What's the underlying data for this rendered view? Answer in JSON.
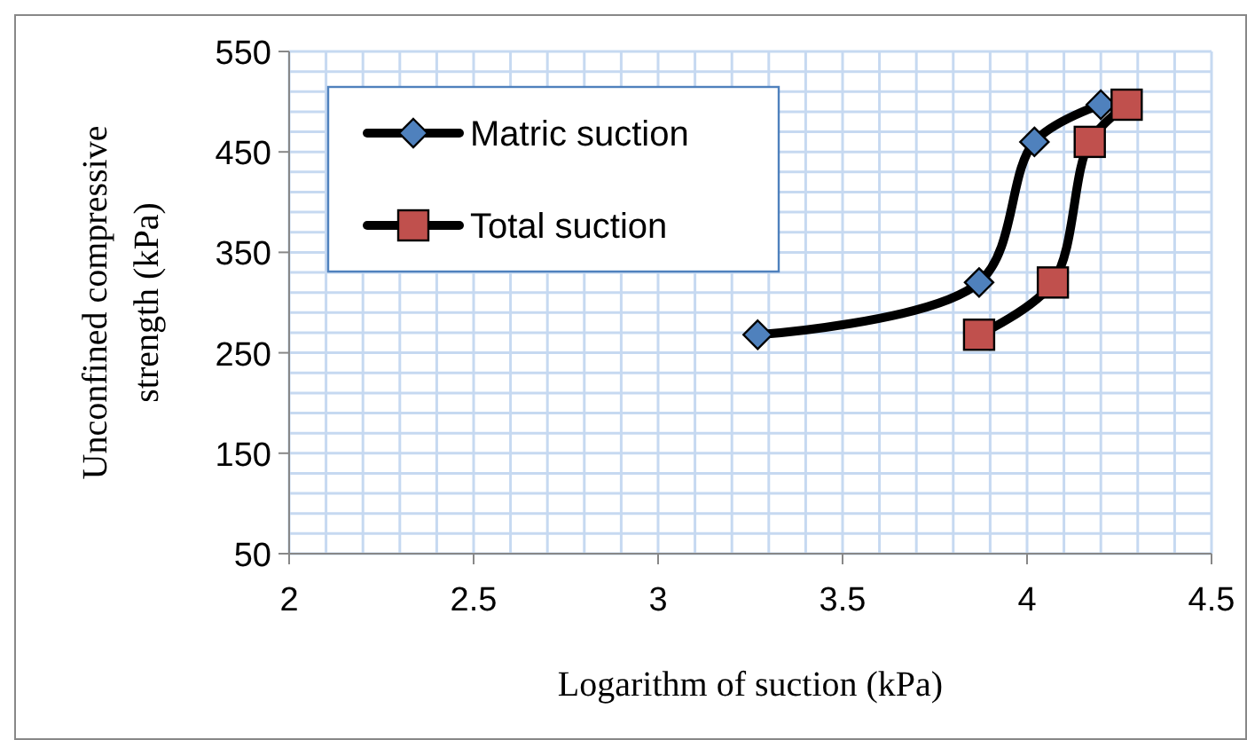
{
  "chart_data": {
    "type": "line",
    "xlabel": "Logarithm of suction (kPa)",
    "ylabel": "Unconfined compressive strength (kPa)",
    "xlim": [
      2,
      4.5
    ],
    "xticks": [
      2,
      2.5,
      3,
      3.5,
      4,
      4.5
    ],
    "ylim": [
      50,
      550
    ],
    "yticks": [
      50,
      150,
      250,
      350,
      450,
      550
    ],
    "grid": true,
    "legend": "top left",
    "line_style": "solid",
    "series": [
      {
        "name": "Matric suction",
        "color": "#4f81bd",
        "marker": "diamond",
        "x": [
          3.27,
          3.87,
          4.02,
          4.2
        ],
        "values": [
          268,
          320,
          460,
          497
        ]
      },
      {
        "name": "Total suction",
        "color": "#c0504d",
        "marker": "square",
        "x": [
          3.87,
          4.07,
          4.17,
          4.27
        ],
        "values": [
          268,
          320,
          460,
          497
        ]
      }
    ]
  }
}
